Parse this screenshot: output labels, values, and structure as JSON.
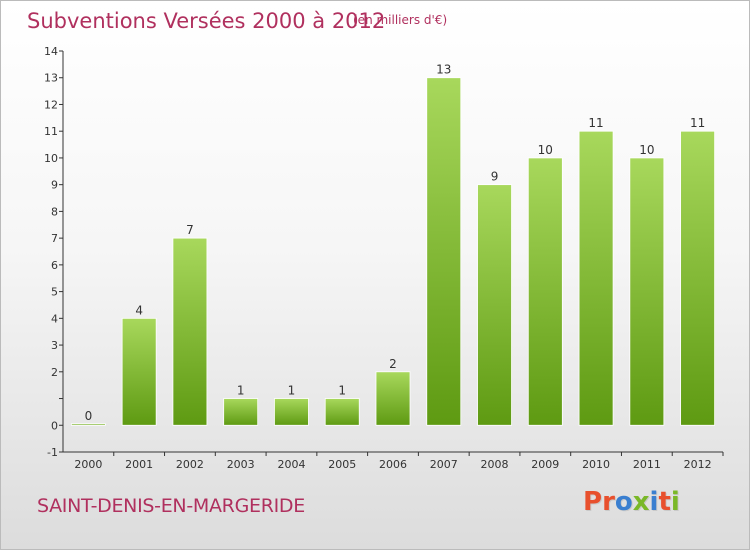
{
  "header": {
    "title": "Subventions Versées 2000 à 2012",
    "unit": "(en milliers d'€)"
  },
  "footer": {
    "commune": "SAINT-DENIS-EN-MARGERIDE",
    "brand": "Proxiti",
    "brand_colors": [
      "#e8502d",
      "#e8502d",
      "#3a7fd0",
      "#7ab828",
      "#3a7fd0",
      "#e8502d",
      "#7ab828"
    ]
  },
  "colors": {
    "bar_top": "#a8d85c",
    "bar_bottom": "#5e9a12",
    "axis": "#333333",
    "text": "#333333",
    "accent": "#b0305e"
  },
  "chart_data": {
    "type": "bar",
    "categories": [
      "2000",
      "2001",
      "2002",
      "2003",
      "2004",
      "2005",
      "2006",
      "2007",
      "2008",
      "2009",
      "2010",
      "2011",
      "2012"
    ],
    "values": [
      0,
      4,
      7,
      1,
      1,
      1,
      2,
      13,
      9,
      10,
      11,
      10,
      11
    ],
    "value_labels": [
      "0",
      "4",
      "7",
      "1",
      "1",
      "1",
      "2",
      "13",
      "9",
      "10",
      "11",
      "10",
      "11"
    ],
    "title": "Subventions Versées 2000 à 2012",
    "ylabel": "(en milliers d'€)",
    "ylim": [
      -1,
      14
    ],
    "yticks": [
      -1,
      0,
      1,
      2,
      3,
      4,
      5,
      6,
      7,
      8,
      9,
      10,
      11,
      12,
      13,
      14
    ],
    "ytick_labels": [
      "-1",
      "0",
      "",
      "2",
      "3",
      "4",
      "5",
      "6",
      "7",
      "8",
      "9",
      "10",
      "11",
      "12",
      "13",
      "14"
    ],
    "grid": false,
    "legend": "none"
  }
}
